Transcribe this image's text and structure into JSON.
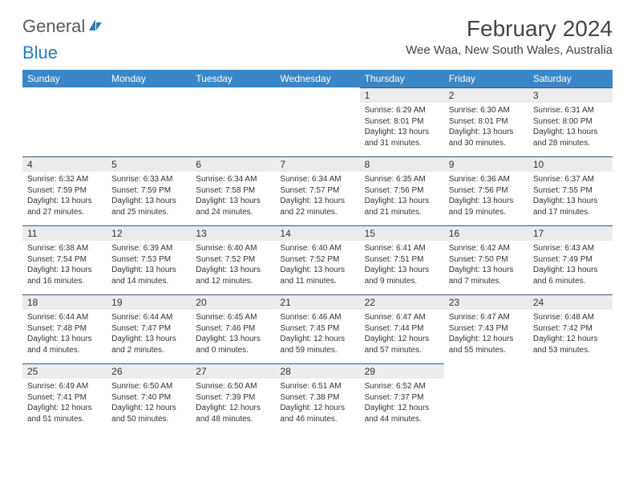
{
  "logo": {
    "part1": "General",
    "part2": "Blue"
  },
  "title": "February 2024",
  "location": "Wee Waa, New South Wales, Australia",
  "colors": {
    "header_bg": "#3a87c7",
    "header_text": "#ffffff",
    "daynum_bg": "#ececec",
    "border_top": "#2a5a8a",
    "logo_gray": "#5a5a5a",
    "logo_blue": "#2a7bbf"
  },
  "weekdays": [
    "Sunday",
    "Monday",
    "Tuesday",
    "Wednesday",
    "Thursday",
    "Friday",
    "Saturday"
  ],
  "weeks": [
    [
      null,
      null,
      null,
      null,
      {
        "n": "1",
        "sr": "Sunrise: 6:29 AM",
        "ss": "Sunset: 8:01 PM",
        "dl1": "Daylight: 13 hours",
        "dl2": "and 31 minutes."
      },
      {
        "n": "2",
        "sr": "Sunrise: 6:30 AM",
        "ss": "Sunset: 8:01 PM",
        "dl1": "Daylight: 13 hours",
        "dl2": "and 30 minutes."
      },
      {
        "n": "3",
        "sr": "Sunrise: 6:31 AM",
        "ss": "Sunset: 8:00 PM",
        "dl1": "Daylight: 13 hours",
        "dl2": "and 28 minutes."
      }
    ],
    [
      {
        "n": "4",
        "sr": "Sunrise: 6:32 AM",
        "ss": "Sunset: 7:59 PM",
        "dl1": "Daylight: 13 hours",
        "dl2": "and 27 minutes."
      },
      {
        "n": "5",
        "sr": "Sunrise: 6:33 AM",
        "ss": "Sunset: 7:59 PM",
        "dl1": "Daylight: 13 hours",
        "dl2": "and 25 minutes."
      },
      {
        "n": "6",
        "sr": "Sunrise: 6:34 AM",
        "ss": "Sunset: 7:58 PM",
        "dl1": "Daylight: 13 hours",
        "dl2": "and 24 minutes."
      },
      {
        "n": "7",
        "sr": "Sunrise: 6:34 AM",
        "ss": "Sunset: 7:57 PM",
        "dl1": "Daylight: 13 hours",
        "dl2": "and 22 minutes."
      },
      {
        "n": "8",
        "sr": "Sunrise: 6:35 AM",
        "ss": "Sunset: 7:56 PM",
        "dl1": "Daylight: 13 hours",
        "dl2": "and 21 minutes."
      },
      {
        "n": "9",
        "sr": "Sunrise: 6:36 AM",
        "ss": "Sunset: 7:56 PM",
        "dl1": "Daylight: 13 hours",
        "dl2": "and 19 minutes."
      },
      {
        "n": "10",
        "sr": "Sunrise: 6:37 AM",
        "ss": "Sunset: 7:55 PM",
        "dl1": "Daylight: 13 hours",
        "dl2": "and 17 minutes."
      }
    ],
    [
      {
        "n": "11",
        "sr": "Sunrise: 6:38 AM",
        "ss": "Sunset: 7:54 PM",
        "dl1": "Daylight: 13 hours",
        "dl2": "and 16 minutes."
      },
      {
        "n": "12",
        "sr": "Sunrise: 6:39 AM",
        "ss": "Sunset: 7:53 PM",
        "dl1": "Daylight: 13 hours",
        "dl2": "and 14 minutes."
      },
      {
        "n": "13",
        "sr": "Sunrise: 6:40 AM",
        "ss": "Sunset: 7:52 PM",
        "dl1": "Daylight: 13 hours",
        "dl2": "and 12 minutes."
      },
      {
        "n": "14",
        "sr": "Sunrise: 6:40 AM",
        "ss": "Sunset: 7:52 PM",
        "dl1": "Daylight: 13 hours",
        "dl2": "and 11 minutes."
      },
      {
        "n": "15",
        "sr": "Sunrise: 6:41 AM",
        "ss": "Sunset: 7:51 PM",
        "dl1": "Daylight: 13 hours",
        "dl2": "and 9 minutes."
      },
      {
        "n": "16",
        "sr": "Sunrise: 6:42 AM",
        "ss": "Sunset: 7:50 PM",
        "dl1": "Daylight: 13 hours",
        "dl2": "and 7 minutes."
      },
      {
        "n": "17",
        "sr": "Sunrise: 6:43 AM",
        "ss": "Sunset: 7:49 PM",
        "dl1": "Daylight: 13 hours",
        "dl2": "and 6 minutes."
      }
    ],
    [
      {
        "n": "18",
        "sr": "Sunrise: 6:44 AM",
        "ss": "Sunset: 7:48 PM",
        "dl1": "Daylight: 13 hours",
        "dl2": "and 4 minutes."
      },
      {
        "n": "19",
        "sr": "Sunrise: 6:44 AM",
        "ss": "Sunset: 7:47 PM",
        "dl1": "Daylight: 13 hours",
        "dl2": "and 2 minutes."
      },
      {
        "n": "20",
        "sr": "Sunrise: 6:45 AM",
        "ss": "Sunset: 7:46 PM",
        "dl1": "Daylight: 13 hours",
        "dl2": "and 0 minutes."
      },
      {
        "n": "21",
        "sr": "Sunrise: 6:46 AM",
        "ss": "Sunset: 7:45 PM",
        "dl1": "Daylight: 12 hours",
        "dl2": "and 59 minutes."
      },
      {
        "n": "22",
        "sr": "Sunrise: 6:47 AM",
        "ss": "Sunset: 7:44 PM",
        "dl1": "Daylight: 12 hours",
        "dl2": "and 57 minutes."
      },
      {
        "n": "23",
        "sr": "Sunrise: 6:47 AM",
        "ss": "Sunset: 7:43 PM",
        "dl1": "Daylight: 12 hours",
        "dl2": "and 55 minutes."
      },
      {
        "n": "24",
        "sr": "Sunrise: 6:48 AM",
        "ss": "Sunset: 7:42 PM",
        "dl1": "Daylight: 12 hours",
        "dl2": "and 53 minutes."
      }
    ],
    [
      {
        "n": "25",
        "sr": "Sunrise: 6:49 AM",
        "ss": "Sunset: 7:41 PM",
        "dl1": "Daylight: 12 hours",
        "dl2": "and 51 minutes."
      },
      {
        "n": "26",
        "sr": "Sunrise: 6:50 AM",
        "ss": "Sunset: 7:40 PM",
        "dl1": "Daylight: 12 hours",
        "dl2": "and 50 minutes."
      },
      {
        "n": "27",
        "sr": "Sunrise: 6:50 AM",
        "ss": "Sunset: 7:39 PM",
        "dl1": "Daylight: 12 hours",
        "dl2": "and 48 minutes."
      },
      {
        "n": "28",
        "sr": "Sunrise: 6:51 AM",
        "ss": "Sunset: 7:38 PM",
        "dl1": "Daylight: 12 hours",
        "dl2": "and 46 minutes."
      },
      {
        "n": "29",
        "sr": "Sunrise: 6:52 AM",
        "ss": "Sunset: 7:37 PM",
        "dl1": "Daylight: 12 hours",
        "dl2": "and 44 minutes."
      },
      null,
      null
    ]
  ]
}
